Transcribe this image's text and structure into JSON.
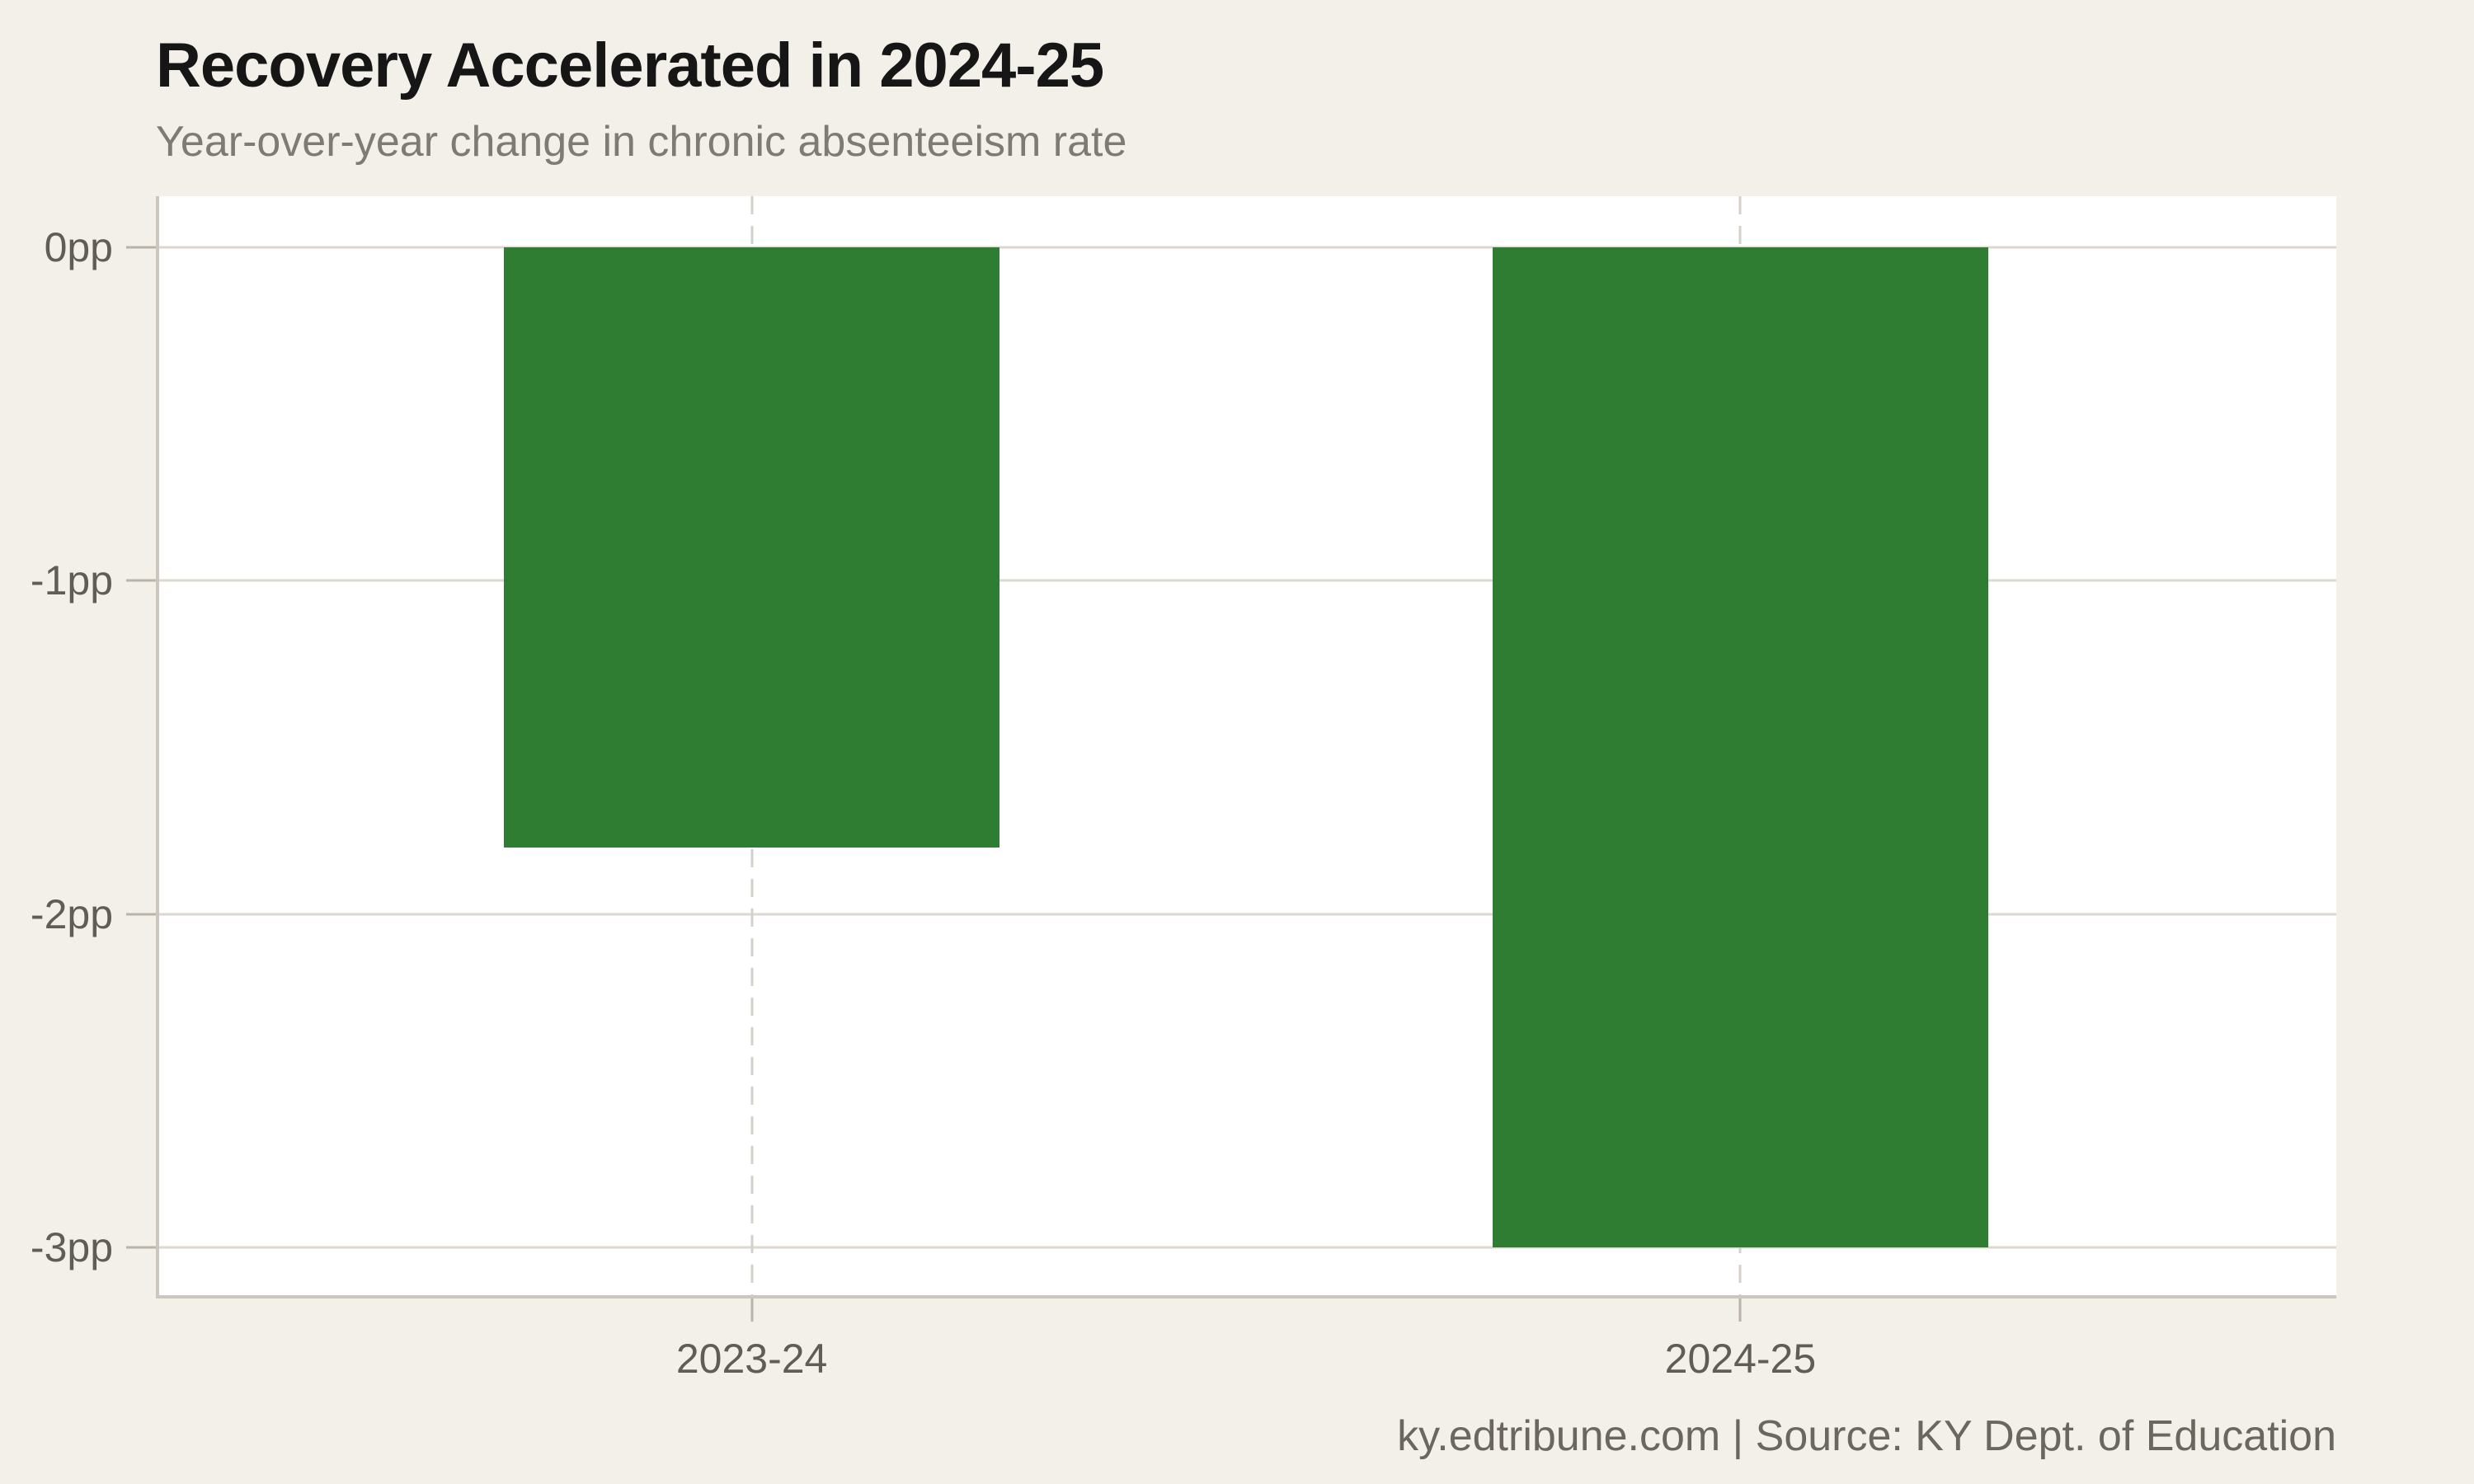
{
  "page": {
    "background_color": "#f3f0ea",
    "plot_background_color": "#ffffff"
  },
  "chart_data": {
    "type": "bar",
    "title": "Recovery Accelerated in 2024-25",
    "subtitle": "Year-over-year change in chronic absenteeism rate",
    "categories": [
      "2023-24",
      "2024-25"
    ],
    "values": [
      -1.8,
      -3.0
    ],
    "unit": "pp",
    "bar_color": "#2e7d32",
    "xlabel": "",
    "ylabel": "",
    "ylim": [
      -3.154,
      0.154
    ],
    "yticks": [
      {
        "value": 0,
        "label": "0pp"
      },
      {
        "value": -1,
        "label": "-1pp"
      },
      {
        "value": -2,
        "label": "-2pp"
      },
      {
        "value": -3,
        "label": "-3pp"
      }
    ],
    "grid": "horizontal solid lines at each pp; dashed vertical line at each category center",
    "legend": "none",
    "source": "ky.edtribune.com | Source: KY Dept. of Education"
  }
}
